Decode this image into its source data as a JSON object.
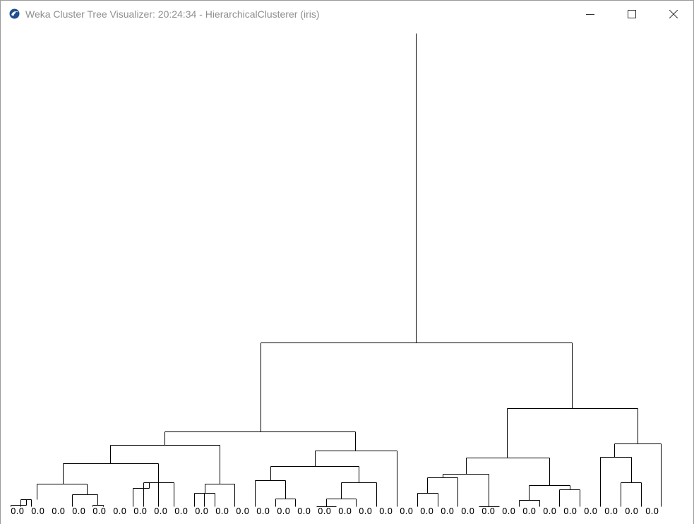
{
  "window": {
    "title": "Weka Cluster Tree Visualizer: 20:24:34 - HierarchicalClusterer (iris)",
    "icon": "weka-bird-icon",
    "controls": {
      "minimize": "minimize-icon",
      "maximize": "maximize-icon",
      "close": "close-icon"
    }
  },
  "colors": {
    "title_text": "#8f8f8f",
    "tree_lines": "#000000",
    "background": "#ffffff"
  },
  "tree": {
    "leaf_label": "0.0",
    "leaf_count": 32
  }
}
